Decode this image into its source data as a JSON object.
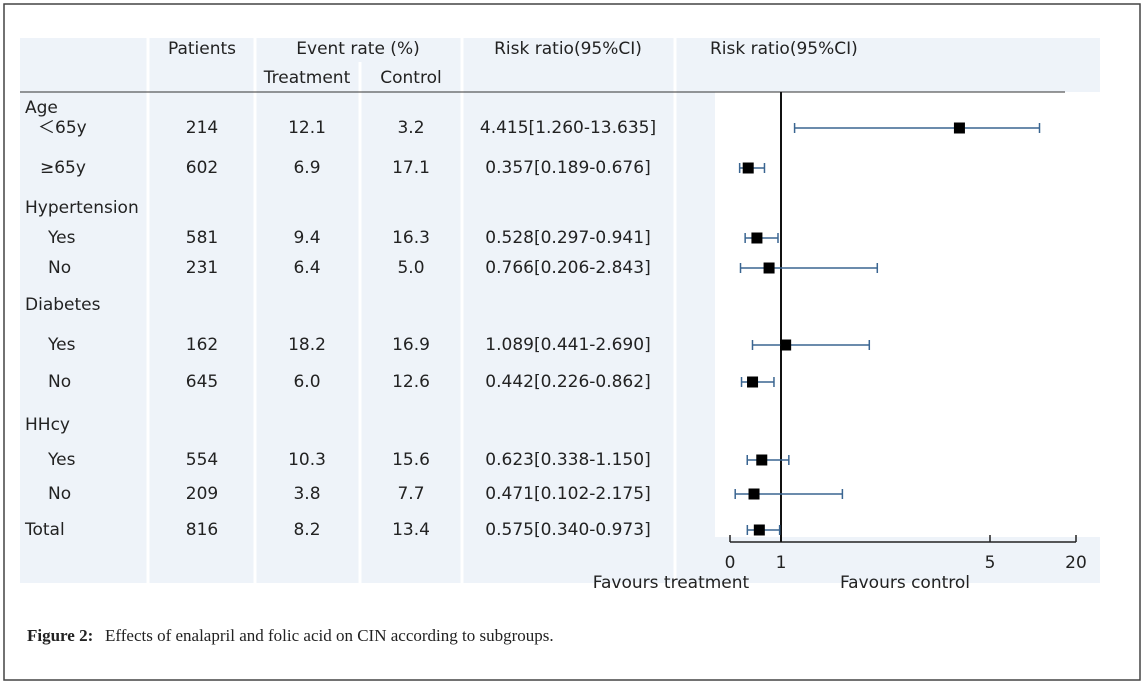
{
  "header": {
    "patients": "Patients",
    "event_rate": "Event rate (%)",
    "treatment": "Treatment",
    "control": "Control",
    "risk_ratio": "Risk ratio(95%CI)"
  },
  "rows": [
    {
      "label": "Age"
    },
    {
      "label": "＜65y",
      "patients": "214",
      "treatment": "12.1",
      "control": "3.2",
      "ci": "4.415[1.260-13.635]"
    },
    {
      "label": "≥65y",
      "patients": "602",
      "treatment": "6.9",
      "control": "17.1",
      "ci": "0.357[0.189-0.676]"
    },
    {
      "label": "Hypertension"
    },
    {
      "label": "Yes",
      "patients": "581",
      "treatment": "9.4",
      "control": "16.3",
      "ci": "0.528[0.297-0.941]"
    },
    {
      "label": "No",
      "patients": "231",
      "treatment": "6.4",
      "control": "5.0",
      "ci": "0.766[0.206-2.843]"
    },
    {
      "label": "Diabetes"
    },
    {
      "label": "Yes",
      "patients": "162",
      "treatment": "18.2",
      "control": "16.9",
      "ci": "1.089[0.441-2.690]"
    },
    {
      "label": "No",
      "patients": "645",
      "treatment": "6.0",
      "control": "12.6",
      "ci": "0.442[0.226-0.862]"
    },
    {
      "label": "HHcy"
    },
    {
      "label": "Yes",
      "patients": "554",
      "treatment": "10.3",
      "control": "15.6",
      "ci": "0.623[0.338-1.150]"
    },
    {
      "label": "No",
      "patients": "209",
      "treatment": "3.8",
      "control": "7.7",
      "ci": "0.471[0.102-2.175]"
    },
    {
      "label": "Total",
      "patients": "816",
      "treatment": "8.2",
      "control": "13.4",
      "ci": "0.575[0.340-0.973]"
    }
  ],
  "chart_data": {
    "type": "forest",
    "title": "Risk ratio(95%CI)",
    "values": [
      4.415,
      0.357,
      0.528,
      0.766,
      1.089,
      0.442,
      0.623,
      0.471,
      0.575
    ],
    "lower": [
      1.26,
      0.189,
      0.297,
      0.206,
      0.441,
      0.226,
      0.338,
      0.102,
      0.34
    ],
    "upper": [
      13.635,
      0.676,
      0.941,
      2.843,
      2.69,
      0.862,
      1.15,
      2.175,
      0.973
    ],
    "xlim": [
      0,
      20
    ],
    "xticks": [
      0,
      1,
      5,
      20
    ],
    "reference": 1,
    "left_label": "Favours treatment",
    "right_label": "Favours control",
    "color": "#3a6591"
  },
  "caption": {
    "label": "Figure 2:",
    "text": "Effects of enalapril and folic acid on CIN according to subgroups."
  }
}
